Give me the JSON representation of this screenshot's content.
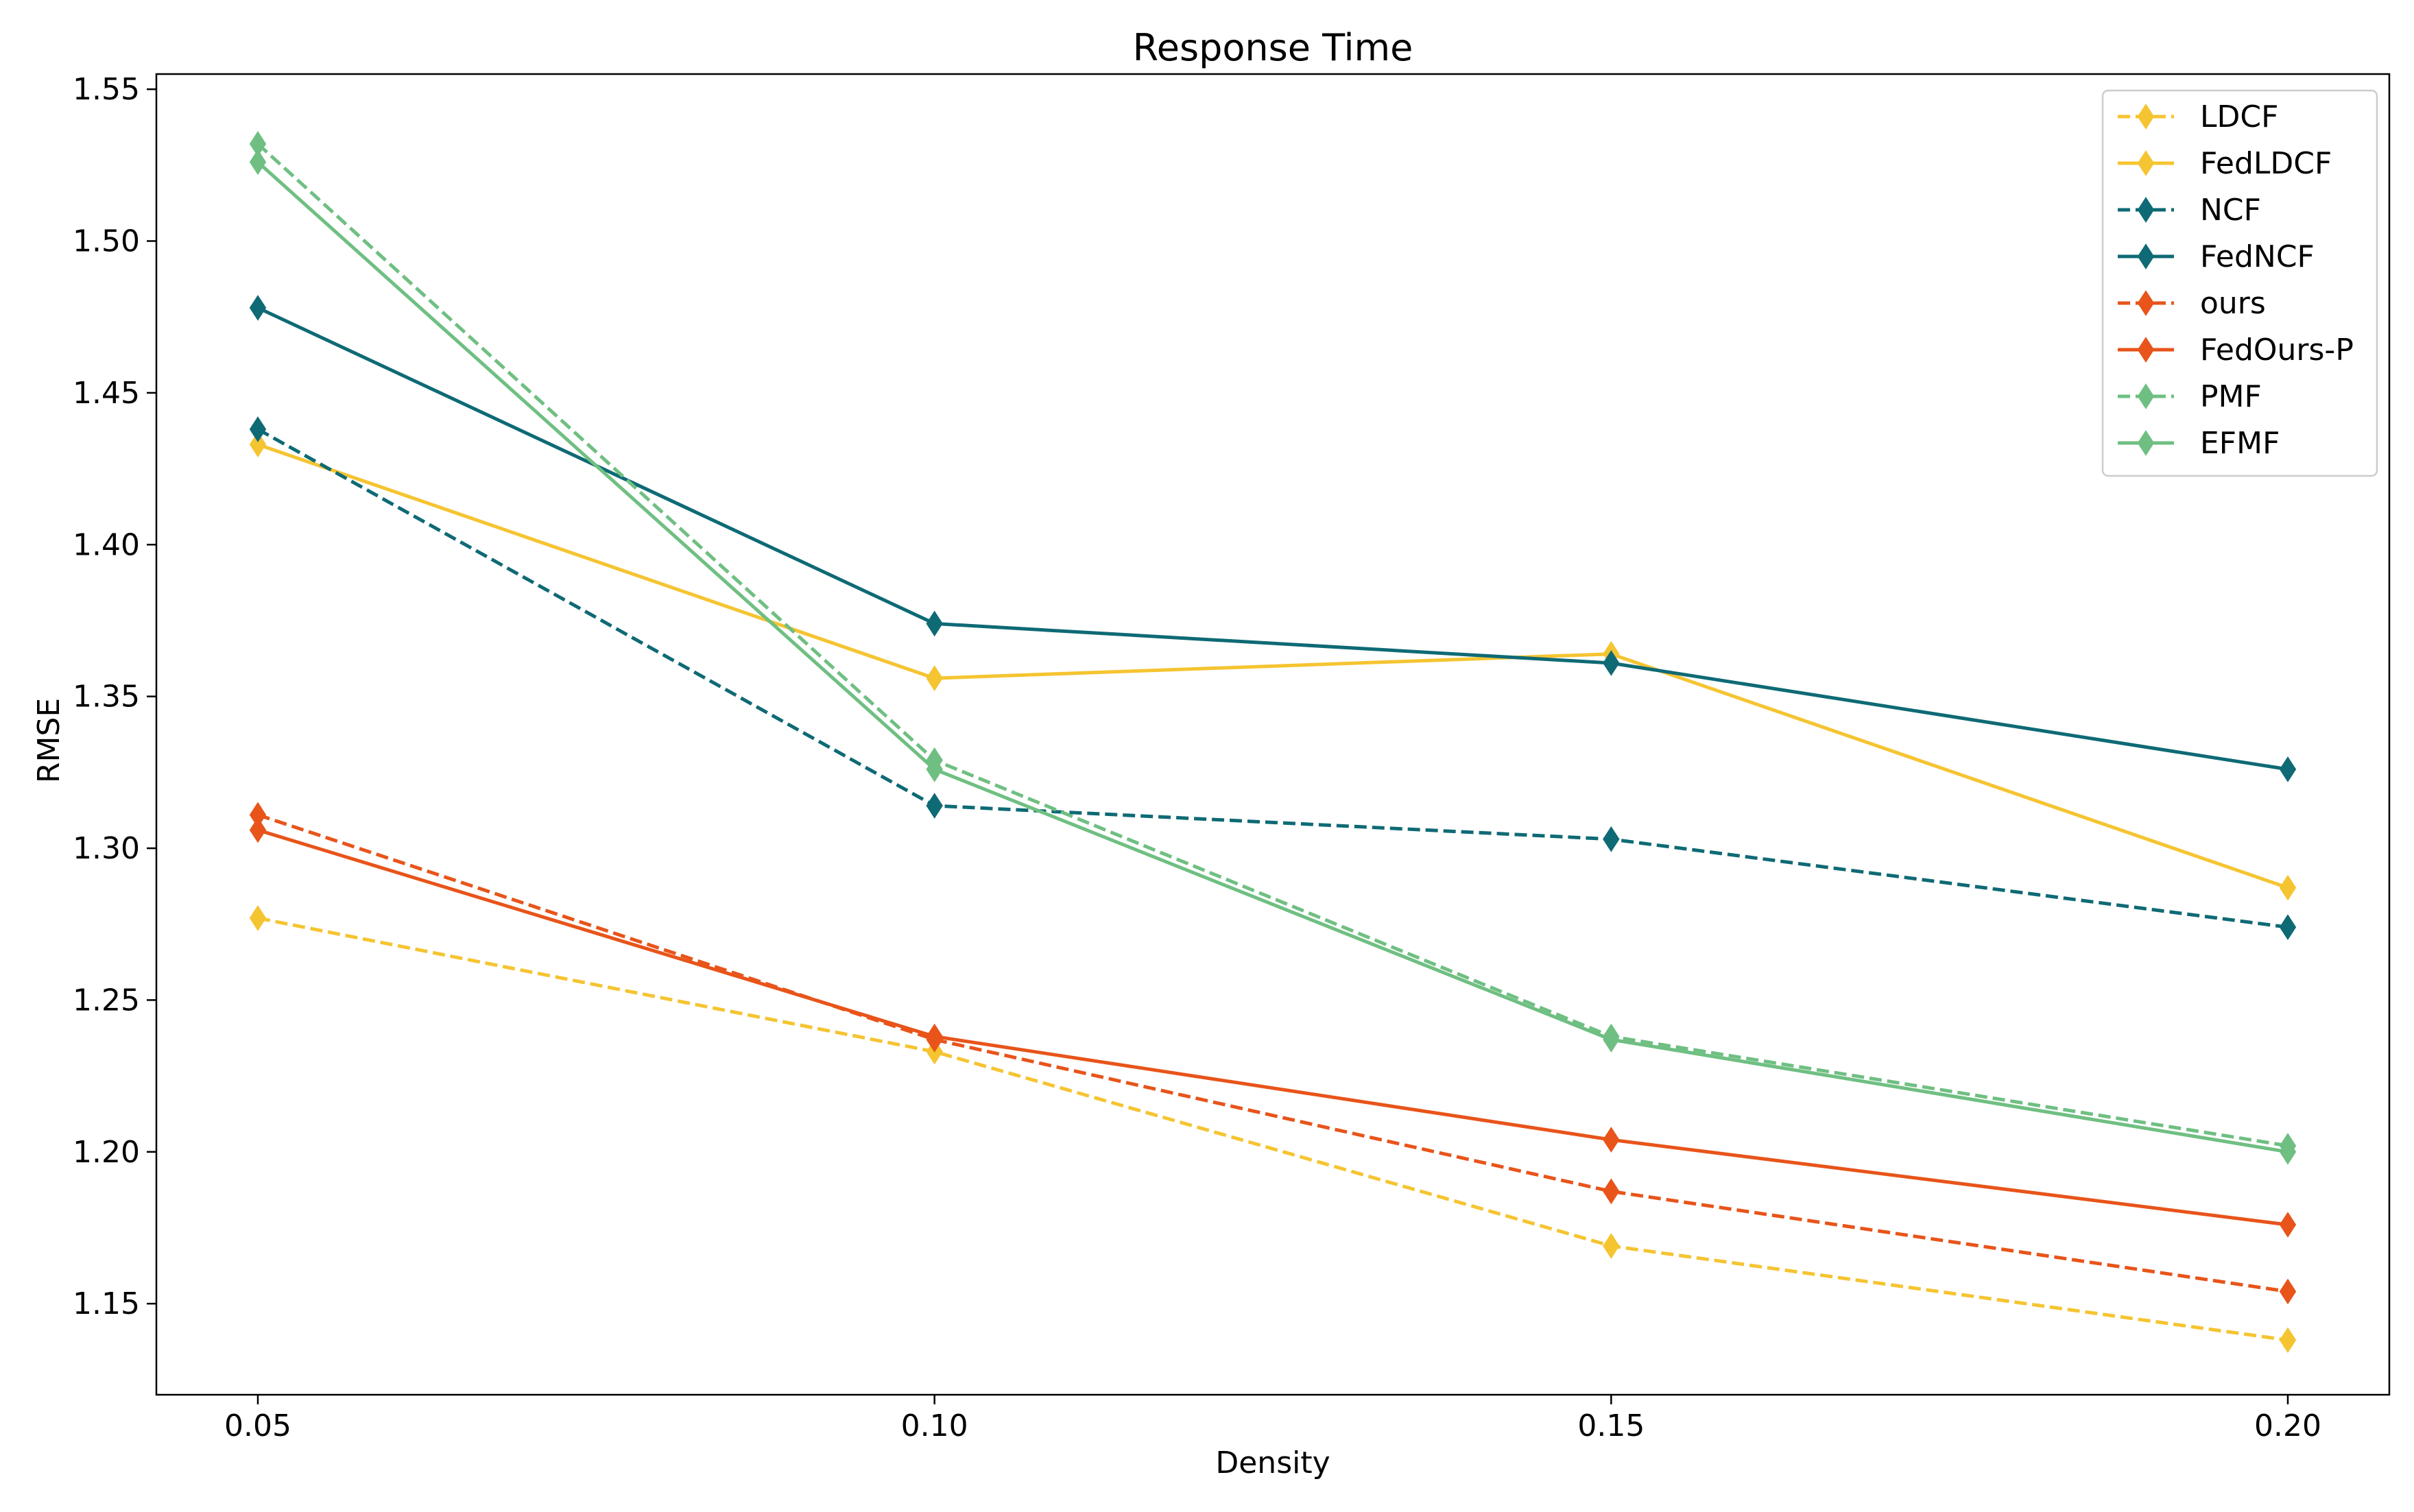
{
  "chart_data": {
    "type": "line",
    "title": "Response Time",
    "xlabel": "Density",
    "ylabel": "RMSE",
    "x": [
      0.05,
      0.1,
      0.15,
      0.2
    ],
    "x_tick_labels": [
      "0.05",
      "0.10",
      "0.15",
      "0.20"
    ],
    "xlim": [
      0.0425,
      0.2075
    ],
    "ylim": [
      1.12,
      1.555
    ],
    "y_ticks": [
      1.15,
      1.2,
      1.25,
      1.3,
      1.35,
      1.4,
      1.45,
      1.5,
      1.55
    ],
    "y_tick_labels": [
      "1.15",
      "1.20",
      "1.25",
      "1.30",
      "1.35",
      "1.40",
      "1.45",
      "1.50",
      "1.55"
    ],
    "grid": false,
    "legend_position": "top-right",
    "marker": "thin-diamond",
    "series": [
      {
        "name": "LDCF",
        "values": [
          1.277,
          1.233,
          1.169,
          1.138
        ],
        "color": "#F5C431",
        "style": "dashed"
      },
      {
        "name": "FedLDCF",
        "values": [
          1.433,
          1.356,
          1.364,
          1.287
        ],
        "color": "#F5C431",
        "style": "solid"
      },
      {
        "name": "NCF",
        "values": [
          1.438,
          1.314,
          1.303,
          1.274
        ],
        "color": "#0E6A75",
        "style": "dashed"
      },
      {
        "name": "FedNCF",
        "values": [
          1.478,
          1.374,
          1.361,
          1.326
        ],
        "color": "#0E6A75",
        "style": "solid"
      },
      {
        "name": "ours",
        "values": [
          1.311,
          1.237,
          1.187,
          1.154
        ],
        "color": "#E8541A",
        "style": "dashed"
      },
      {
        "name": "FedOurs-P",
        "values": [
          1.306,
          1.238,
          1.204,
          1.176
        ],
        "color": "#E8541A",
        "style": "solid"
      },
      {
        "name": "PMF",
        "values": [
          1.532,
          1.329,
          1.238,
          1.202
        ],
        "color": "#6FBF82",
        "style": "dashed"
      },
      {
        "name": "EFMF",
        "values": [
          1.526,
          1.326,
          1.237,
          1.2
        ],
        "color": "#6FBF82",
        "style": "solid"
      }
    ]
  }
}
